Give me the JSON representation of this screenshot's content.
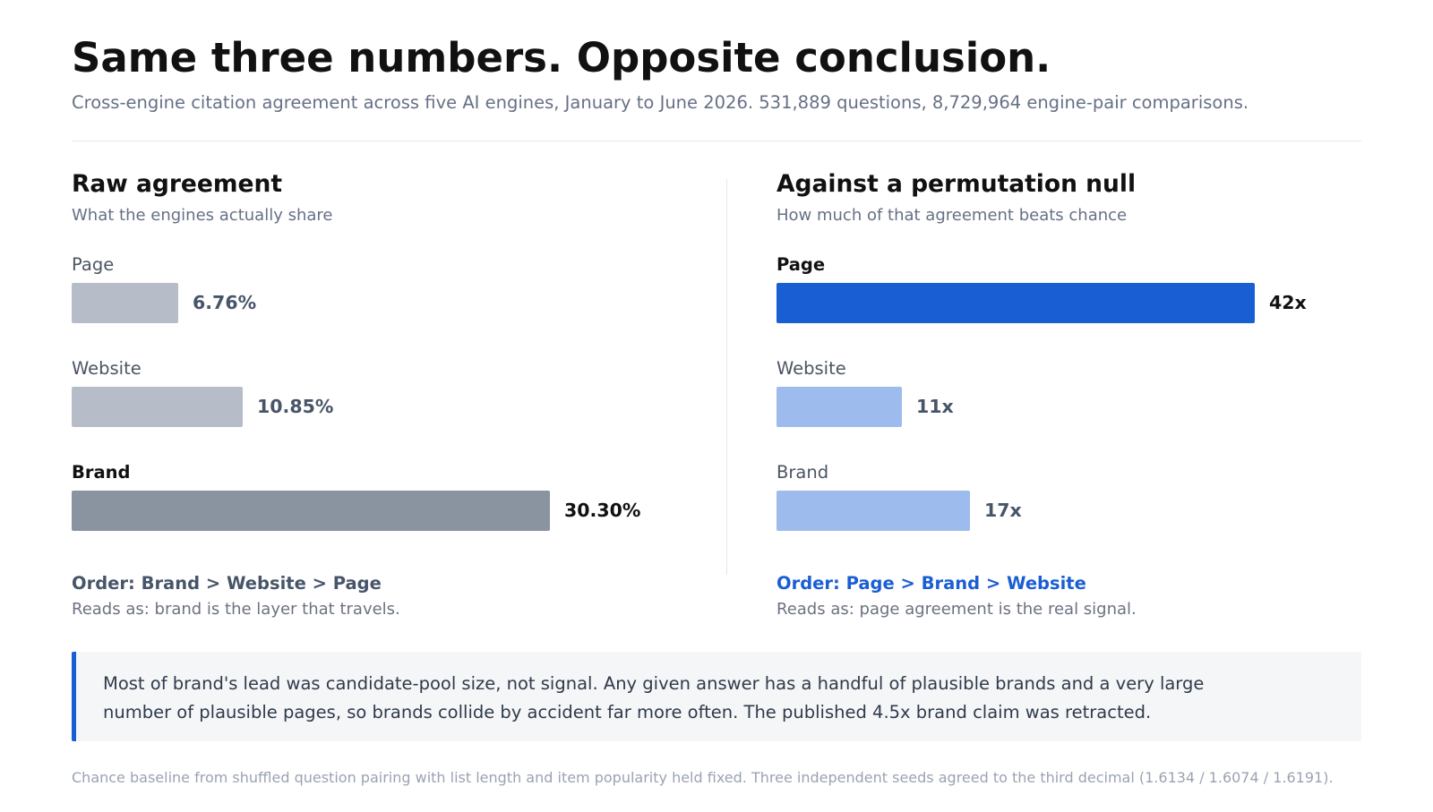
{
  "header": {
    "title": "Same three numbers. Opposite conclusion.",
    "subtitle": "Cross-engine citation agreement across five AI engines, January to June 2026. 531,889 questions, 8,729,964 engine-pair comparisons."
  },
  "colors": {
    "raw_bar": "#b7bdc8",
    "raw_bar_highlight": "#8a94a1",
    "null_bar": "#9dbbed",
    "null_bar_highlight": "#1a5ed4",
    "raw_order_text": "#475569",
    "null_order_text": "#1a5ed4"
  },
  "chart_data": [
    {
      "type": "bar",
      "orientation": "horizontal",
      "title": "Raw agreement",
      "subtitle": "What the engines actually share",
      "categories": [
        "Page",
        "Website",
        "Brand"
      ],
      "values": [
        6.76,
        10.85,
        30.3
      ],
      "value_labels": [
        "6.76%",
        "10.85%",
        "30.30%"
      ],
      "unit": "%",
      "xlim": [
        0,
        36.3
      ],
      "highlight": "Brand",
      "order_text": "Order: Brand > Website > Page",
      "reads_as": "Reads as: brand is the layer that travels."
    },
    {
      "type": "bar",
      "orientation": "horizontal",
      "title": "Against a permutation null",
      "subtitle": "How much of that agreement beats chance",
      "categories": [
        "Page",
        "Website",
        "Brand"
      ],
      "values": [
        42,
        11,
        17
      ],
      "value_labels": [
        "42x",
        "11x",
        "17x"
      ],
      "unit": "x",
      "xlim": [
        0,
        50.3
      ],
      "highlight": "Page",
      "order_text": "Order: Page > Brand > Website",
      "reads_as": "Reads as: page agreement is the real signal."
    }
  ],
  "callout": {
    "text": "Most of brand's lead was candidate-pool size, not signal. Any given answer has a handful of plausible brands and a very large number of plausible pages, so brands collide by accident far more often. The published 4.5x brand claim was retracted."
  },
  "footnote": "Chance baseline from shuffled question pairing with list length and item popularity held fixed. Three independent seeds agreed to the third decimal (1.6134 / 1.6074 / 1.6191)."
}
